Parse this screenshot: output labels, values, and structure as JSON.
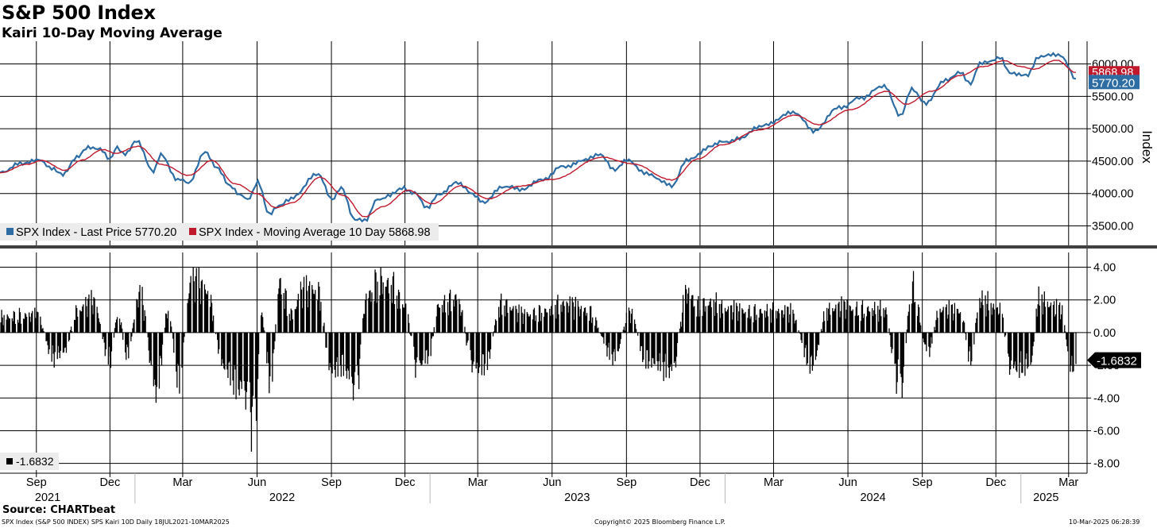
{
  "header": {
    "title": "S&P 500 Index",
    "subtitle": "Kairi 10-Day Moving Average"
  },
  "footer": {
    "source": "Source: CHARTbeat",
    "left": "SPX Index (S&P 500 INDEX) SPS Kairi 10D  Daily 18JUL2021-10MAR2025",
    "center": "Copyright© 2025 Bloomberg Finance L.P.",
    "right": "10-Mar-2025 06:28:39"
  },
  "colors": {
    "price": "#2e6da4",
    "ma": "#c0192c",
    "kairi": "#000000",
    "grid": "#000000"
  },
  "chart_data": [
    {
      "type": "line",
      "ylabel": "Index",
      "ylim": [
        3200,
        6350
      ],
      "y_ticks": [
        "6000.00",
        "5500.00",
        "5000.00",
        "4500.00",
        "4000.00",
        "3500.00"
      ],
      "legend": [
        {
          "name": "SPX Index - Last Price",
          "value": "5770.20"
        },
        {
          "name": "SPX Index - Moving Average 10 Day",
          "value": "5868.98"
        }
      ],
      "last_price_label": "5770.20",
      "ma_label": "5868.98",
      "series": [
        {
          "name": "SPX Index - Last Price",
          "points": [
            [
              "2021-07-18",
              4330
            ],
            [
              "2021-08-15",
              4470
            ],
            [
              "2021-09-01",
              4530
            ],
            [
              "2021-09-20",
              4400
            ],
            [
              "2021-10-04",
              4300
            ],
            [
              "2021-10-21",
              4550
            ],
            [
              "2021-11-04",
              4700
            ],
            [
              "2021-11-19",
              4700
            ],
            [
              "2021-12-01",
              4520
            ],
            [
              "2021-12-10",
              4710
            ],
            [
              "2021-12-20",
              4600
            ],
            [
              "2022-01-03",
              4800
            ],
            [
              "2022-01-24",
              4350
            ],
            [
              "2022-02-02",
              4590
            ],
            [
              "2022-02-23",
              4220
            ],
            [
              "2022-03-08",
              4170
            ],
            [
              "2022-03-29",
              4630
            ],
            [
              "2022-04-12",
              4400
            ],
            [
              "2022-04-29",
              4130
            ],
            [
              "2022-05-10",
              4000
            ],
            [
              "2022-05-20",
              3900
            ],
            [
              "2022-06-02",
              4170
            ],
            [
              "2022-06-16",
              3670
            ],
            [
              "2022-06-28",
              3820
            ],
            [
              "2022-07-10",
              3900
            ],
            [
              "2022-08-16",
              4300
            ],
            [
              "2022-09-02",
              3920
            ],
            [
              "2022-09-13",
              4100
            ],
            [
              "2022-09-30",
              3590
            ],
            [
              "2022-10-12",
              3580
            ],
            [
              "2022-10-28",
              3900
            ],
            [
              "2022-11-10",
              3960
            ],
            [
              "2022-11-30",
              4080
            ],
            [
              "2022-12-13",
              4000
            ],
            [
              "2022-12-28",
              3790
            ],
            [
              "2023-01-13",
              3990
            ],
            [
              "2023-02-02",
              4180
            ],
            [
              "2023-02-23",
              3990
            ],
            [
              "2023-03-10",
              3860
            ],
            [
              "2023-03-31",
              4110
            ],
            [
              "2023-04-25",
              4070
            ],
            [
              "2023-05-18",
              4200
            ],
            [
              "2023-06-15",
              4420
            ],
            [
              "2023-07-31",
              4590
            ],
            [
              "2023-08-18",
              4370
            ],
            [
              "2023-09-01",
              4510
            ],
            [
              "2023-09-29",
              4290
            ],
            [
              "2023-10-27",
              4120
            ],
            [
              "2023-11-14",
              4500
            ],
            [
              "2023-12-14",
              4720
            ],
            [
              "2023-12-28",
              4790
            ],
            [
              "2024-01-19",
              4840
            ],
            [
              "2024-02-09",
              5020
            ],
            [
              "2024-03-28",
              5250
            ],
            [
              "2024-04-19",
              4970
            ],
            [
              "2024-05-21",
              5320
            ],
            [
              "2024-06-18",
              5480
            ],
            [
              "2024-07-16",
              5670
            ],
            [
              "2024-08-05",
              5190
            ],
            [
              "2024-08-19",
              5600
            ],
            [
              "2024-09-06",
              5400
            ],
            [
              "2024-09-30",
              5760
            ],
            [
              "2024-10-18",
              5860
            ],
            [
              "2024-10-31",
              5700
            ],
            [
              "2024-11-11",
              6000
            ],
            [
              "2024-12-06",
              6090
            ],
            [
              "2024-12-18",
              5870
            ],
            [
              "2025-01-10",
              5830
            ],
            [
              "2025-01-23",
              6120
            ],
            [
              "2025-02-19",
              6140
            ],
            [
              "2025-03-10",
              5770.2
            ]
          ]
        },
        {
          "name": "SPX Index - Moving Average 10 Day",
          "points": [
            [
              "2021-07-18",
              4320
            ],
            [
              "2021-08-20",
              4450
            ],
            [
              "2021-09-08",
              4510
            ],
            [
              "2021-10-06",
              4360
            ],
            [
              "2021-10-28",
              4520
            ],
            [
              "2021-11-22",
              4680
            ],
            [
              "2021-12-08",
              4620
            ],
            [
              "2022-01-05",
              4730
            ],
            [
              "2022-02-03",
              4450
            ],
            [
              "2022-03-09",
              4280
            ],
            [
              "2022-04-06",
              4510
            ],
            [
              "2022-05-05",
              4150
            ],
            [
              "2022-06-01",
              4000
            ],
            [
              "2022-06-24",
              3780
            ],
            [
              "2022-07-15",
              3860
            ],
            [
              "2022-08-18",
              4250
            ],
            [
              "2022-09-16",
              3970
            ],
            [
              "2022-10-12",
              3640
            ],
            [
              "2022-11-04",
              3800
            ],
            [
              "2022-12-05",
              4050
            ],
            [
              "2023-01-04",
              3840
            ],
            [
              "2023-02-08",
              4120
            ],
            [
              "2023-03-15",
              3920
            ],
            [
              "2023-04-20",
              4110
            ],
            [
              "2023-06-02",
              4220
            ],
            [
              "2023-08-02",
              4560
            ],
            [
              "2023-09-08",
              4460
            ],
            [
              "2023-10-27",
              4210
            ],
            [
              "2023-11-28",
              4530
            ],
            [
              "2023-12-28",
              4750
            ],
            [
              "2024-02-12",
              4980
            ],
            [
              "2024-03-28",
              5210
            ],
            [
              "2024-04-26",
              5060
            ],
            [
              "2024-06-03",
              5290
            ],
            [
              "2024-07-19",
              5580
            ],
            [
              "2024-08-12",
              5380
            ],
            [
              "2024-09-13",
              5580
            ],
            [
              "2024-10-18",
              5820
            ],
            [
              "2024-11-15",
              5960
            ],
            [
              "2024-12-12",
              6050
            ],
            [
              "2024-12-31",
              5960
            ],
            [
              "2025-01-17",
              5920
            ],
            [
              "2025-02-14",
              6060
            ],
            [
              "2025-03-10",
              5868.98
            ]
          ]
        }
      ]
    },
    {
      "type": "bar",
      "name": "SPX Index Kairi 10D",
      "ylim": [
        -8.6,
        4.9
      ],
      "y_ticks": [
        "4.00",
        "2.00",
        "0.00",
        "-2.00",
        "-4.00",
        "-6.00",
        "-8.00"
      ],
      "legend": [
        {
          "name": "",
          "value": "-1.6832"
        }
      ],
      "last_value_label": "-1.6832",
      "episodes": [
        [
          "2021-07-20",
          1.2
        ],
        [
          "2021-08-12",
          1.4
        ],
        [
          "2021-09-01",
          1.3
        ],
        [
          "2021-09-22",
          -1.9
        ],
        [
          "2021-10-05",
          -1.5
        ],
        [
          "2021-10-22",
          1.8
        ],
        [
          "2021-11-10",
          2.4
        ],
        [
          "2021-12-01",
          -2.1
        ],
        [
          "2021-12-11",
          1.5
        ],
        [
          "2021-12-22",
          -1.6
        ],
        [
          "2022-01-07",
          3.0
        ],
        [
          "2022-01-27",
          -4.6
        ],
        [
          "2022-02-11",
          1.7
        ],
        [
          "2022-02-24",
          -3.6
        ],
        [
          "2022-03-12",
          4.1
        ],
        [
          "2022-03-30",
          3.4
        ],
        [
          "2022-04-22",
          -2.8
        ],
        [
          "2022-05-13",
          -4.4
        ],
        [
          "2022-05-30",
          -7.6
        ],
        [
          "2022-06-06",
          1.5
        ],
        [
          "2022-06-18",
          -3.8
        ],
        [
          "2022-06-29",
          4.0
        ],
        [
          "2022-07-14",
          1.5
        ],
        [
          "2022-07-27",
          3.3
        ],
        [
          "2022-08-15",
          3.4
        ],
        [
          "2022-09-01",
          -3.1
        ],
        [
          "2022-09-14",
          -2.5
        ],
        [
          "2022-10-01",
          -4.6
        ],
        [
          "2022-10-15",
          2.9
        ],
        [
          "2022-10-29",
          4.2
        ],
        [
          "2022-11-14",
          3.9
        ],
        [
          "2022-11-30",
          2.2
        ],
        [
          "2022-12-16",
          -2.8
        ],
        [
          "2022-12-30",
          -1.8
        ],
        [
          "2023-01-12",
          2.2
        ],
        [
          "2023-02-02",
          2.8
        ],
        [
          "2023-02-25",
          -2.8
        ],
        [
          "2023-03-11",
          -2.4
        ],
        [
          "2023-03-30",
          2.3
        ],
        [
          "2023-04-28",
          1.4
        ],
        [
          "2023-05-20",
          1.7
        ],
        [
          "2023-06-12",
          2.3
        ],
        [
          "2023-07-14",
          1.8
        ],
        [
          "2023-08-17",
          -1.9
        ],
        [
          "2023-09-06",
          1.5
        ],
        [
          "2023-09-24",
          -2.0
        ],
        [
          "2023-10-06",
          -2.4
        ],
        [
          "2023-10-28",
          -3.0
        ],
        [
          "2023-11-15",
          3.2
        ],
        [
          "2023-11-29",
          2.2
        ],
        [
          "2023-12-14",
          2.4
        ],
        [
          "2024-01-08",
          1.8
        ],
        [
          "2024-01-25",
          1.7
        ],
        [
          "2024-02-23",
          1.7
        ],
        [
          "2024-03-21",
          1.6
        ],
        [
          "2024-04-18",
          -2.5
        ],
        [
          "2024-05-07",
          1.8
        ],
        [
          "2024-05-22",
          2.0
        ],
        [
          "2024-06-12",
          1.9
        ],
        [
          "2024-07-17",
          1.8
        ],
        [
          "2024-07-31",
          -3.6
        ],
        [
          "2024-08-06",
          -4.4
        ],
        [
          "2024-08-19",
          3.8
        ],
        [
          "2024-09-08",
          -1.5
        ],
        [
          "2024-09-23",
          1.8
        ],
        [
          "2024-10-18",
          1.7
        ],
        [
          "2024-10-31",
          -2.0
        ],
        [
          "2024-11-11",
          2.6
        ],
        [
          "2024-12-06",
          1.8
        ],
        [
          "2024-12-19",
          -2.8
        ],
        [
          "2025-01-13",
          -2.4
        ],
        [
          "2025-01-23",
          2.6
        ],
        [
          "2025-02-19",
          1.8
        ],
        [
          "2025-03-05",
          -2.8
        ],
        [
          "2025-03-10",
          -1.6832
        ]
      ]
    }
  ],
  "x_axis": {
    "months": [
      {
        "date": "2021-09-01",
        "label": "Sep"
      },
      {
        "date": "2021-12-01",
        "label": "Dec"
      },
      {
        "date": "2022-03-01",
        "label": "Mar"
      },
      {
        "date": "2022-06-01",
        "label": "Jun"
      },
      {
        "date": "2022-09-01",
        "label": "Sep"
      },
      {
        "date": "2022-12-01",
        "label": "Dec"
      },
      {
        "date": "2023-03-01",
        "label": "Mar"
      },
      {
        "date": "2023-06-01",
        "label": "Jun"
      },
      {
        "date": "2023-09-01",
        "label": "Sep"
      },
      {
        "date": "2023-12-01",
        "label": "Dec"
      },
      {
        "date": "2024-03-01",
        "label": "Mar"
      },
      {
        "date": "2024-06-01",
        "label": "Jun"
      },
      {
        "date": "2024-09-01",
        "label": "Sep"
      },
      {
        "date": "2024-12-01",
        "label": "Dec"
      },
      {
        "date": "2025-03-01",
        "label": "Mar"
      }
    ],
    "years": [
      {
        "label": "2021",
        "center": "2021-09-15"
      },
      {
        "label": "2022",
        "center": "2022-07-02"
      },
      {
        "label": "2023",
        "center": "2023-07-02"
      },
      {
        "label": "2024",
        "center": "2024-07-02"
      },
      {
        "label": "2025",
        "center": "2025-02-01"
      }
    ],
    "year_dividers": [
      "2022-01-01",
      "2023-01-01",
      "2024-01-01",
      "2025-01-01"
    ]
  }
}
